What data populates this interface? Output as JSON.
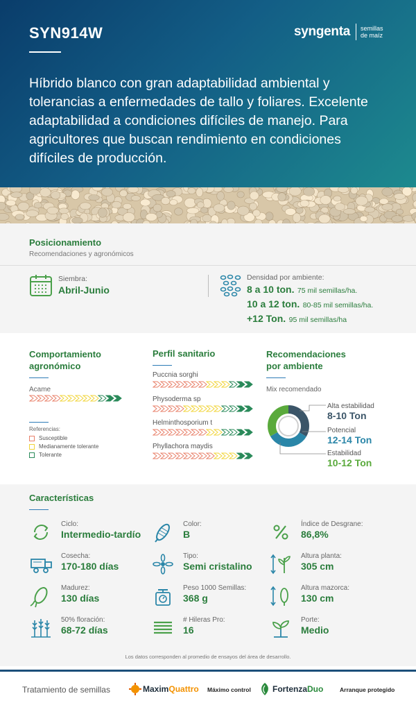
{
  "header": {
    "product": "SYN914W",
    "logo_word": "syngenta",
    "logo_sub1": "semillas",
    "logo_sub2": "de maíz",
    "headline": "Híbrido blanco con gran adaptabilidad ambiental y tolerancias a enfermedades de tallo y foliares. Excelente adaptabilidad a condiciones difíciles de manejo. Para agricultores que buscan rendimiento en condiciones difíciles de producción."
  },
  "positioning": {
    "title": "Posicionamiento",
    "subtitle": "Recomendaciones y agronómicos",
    "sowing_label": "Siembra:",
    "sowing_value": "Abril-Junio",
    "density_label": "Densidad por ambiente:",
    "densities": [
      {
        "tons": "8 a 10 ton.",
        "seeds": "75 mil semillas/ha."
      },
      {
        "tons": "10 a 12 ton.",
        "seeds": "80-85 mil semillas/ha."
      },
      {
        "tons": "+12 Ton.",
        "seeds": "95 mil semillas/ha"
      }
    ]
  },
  "agronomic": {
    "title1": "Comportamiento",
    "title2": "agronómico",
    "trait": "Acame",
    "refs_title": "Referencias:",
    "refs": [
      {
        "label": "Susceptible",
        "color": "#e8806a"
      },
      {
        "label": "Medianamente tolerante",
        "color": "#f1d43a"
      },
      {
        "label": "Tolerante",
        "color": "#2a8a5a"
      }
    ]
  },
  "sanitary": {
    "title": "Perfil sanitario",
    "diseases": [
      "Puccnia sorghi",
      "Physoderma sp",
      "Helminthosporium t",
      "Phyllachora maydis"
    ]
  },
  "environment": {
    "title1": "Recomendaciones",
    "title2": "por ambiente",
    "mix": "Mix recomendado",
    "items": [
      {
        "label": "Alta estabilidad",
        "value": "8-10 Ton",
        "color": "#3b5568"
      },
      {
        "label": "Potencial",
        "value": "12-14 Ton",
        "color": "#2a86a8"
      },
      {
        "label": "Estabilidad",
        "value": "10-12 Ton",
        "color": "#5aaa3c"
      }
    ]
  },
  "characteristics": {
    "title": "Características",
    "items": [
      {
        "icon": "cycle-icon",
        "label": "Ciclo:",
        "value": "Intermedio-tardío"
      },
      {
        "icon": "corn-color-icon",
        "label": "Color:",
        "value": "B"
      },
      {
        "icon": "percent-icon",
        "label": "Índice de Desgrane:",
        "value": "86,8%"
      },
      {
        "icon": "harvester-icon",
        "label": "Cosecha:",
        "value": "170-180 días"
      },
      {
        "icon": "flower-icon",
        "label": "Tipo:",
        "value": "Semi cristalino"
      },
      {
        "icon": "plant-height-icon",
        "label": "Altura planta:",
        "value": "305 cm"
      },
      {
        "icon": "corn-ear-icon",
        "label": "Madurez:",
        "value": "130 días"
      },
      {
        "icon": "scale-icon",
        "label": "Peso 1000 Semillas:",
        "value": "368 g"
      },
      {
        "icon": "ear-height-icon",
        "label": "Altura mazorca:",
        "value": "130 cm"
      },
      {
        "icon": "wheat-icon",
        "label": "50% floración:",
        "value": "68-72 días"
      },
      {
        "icon": "rows-icon",
        "label": "# Hileras Pro:",
        "value": "16"
      },
      {
        "icon": "sprout-icon",
        "label": "Porte:",
        "value": "Medio"
      }
    ],
    "note": "Los datos corresponden al promedio de ensayos del área de desarrollo."
  },
  "footer": {
    "treatment": "Tratamiento de semillas",
    "brand1_a": "Maxim",
    "brand1_b": "Quattro",
    "brand1_tag": "Máximo control",
    "brand2_a": "Fortenza",
    "brand2_b": "Duo",
    "brand2_tag": "Arranque protegido"
  }
}
